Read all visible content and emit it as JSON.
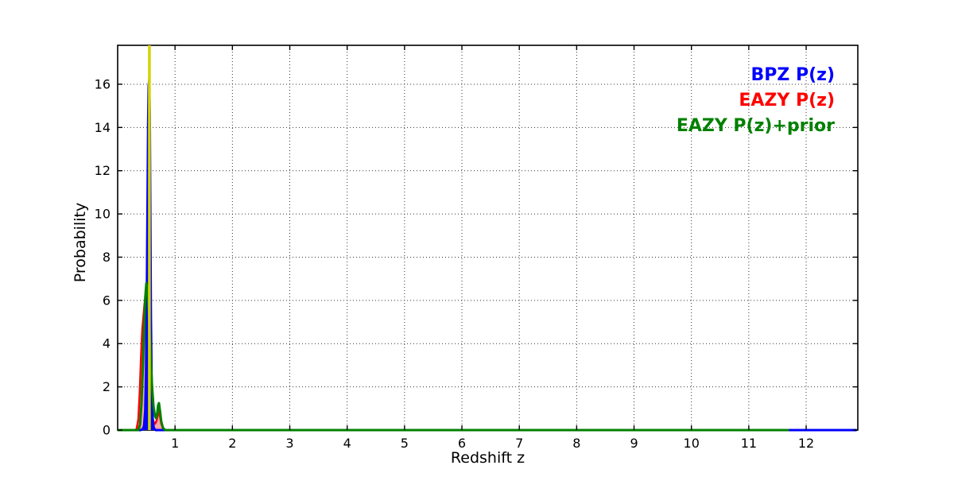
{
  "figure": {
    "background": "#ffffff",
    "frame_color": "#000000",
    "grid_color": "#333333"
  },
  "chart_data": {
    "type": "line",
    "title": "",
    "xlabel": "Redshift z",
    "ylabel": "Probability",
    "xlim": [
      0,
      12.9
    ],
    "ylim": [
      0,
      17.8
    ],
    "xticks": [
      1,
      2,
      3,
      4,
      5,
      6,
      7,
      8,
      9,
      10,
      11,
      12
    ],
    "yticks": [
      0,
      2,
      4,
      6,
      8,
      10,
      12,
      14,
      16
    ],
    "grid": {
      "visible": true,
      "style": "dotted",
      "color": "#333333"
    },
    "legend": {
      "position": "top-right-inside",
      "style": "bold-colored-text-no-markers",
      "entries": [
        {
          "label": "BPZ P(z)",
          "color": "#0000ff"
        },
        {
          "label": "EAZY P(z)",
          "color": "#ff0000"
        },
        {
          "label": "EAZY P(z)+prior",
          "color": "#008000"
        }
      ]
    },
    "series": [
      {
        "name": "EAZY P(z)",
        "color": "#ff0000",
        "fill": "rgba(255,0,0,0.35)",
        "linewidth": 2.5,
        "x": [
          0.0,
          0.3,
          0.33,
          0.36,
          0.385,
          0.41,
          0.43,
          0.45,
          0.47,
          0.49,
          0.51,
          0.53,
          0.55,
          0.57,
          0.6,
          0.63,
          0.655,
          0.68,
          0.7,
          0.72,
          0.74,
          0.76,
          0.79,
          0.83,
          11.7
        ],
        "y": [
          0,
          0,
          0.05,
          0.5,
          1.8,
          3.6,
          4.7,
          5.3,
          5.9,
          5.6,
          4.7,
          3.5,
          2.3,
          1.4,
          0.7,
          0.35,
          0.3,
          0.45,
          0.7,
          0.85,
          0.6,
          0.3,
          0.08,
          0,
          0
        ]
      },
      {
        "name": "BPZ P(z)",
        "color": "#0000ff",
        "fill": "#0000ff",
        "linewidth": 3,
        "x": [
          0.0,
          0.4,
          0.44,
          0.46,
          0.48,
          0.495,
          0.51,
          0.52,
          0.53,
          0.54,
          0.55,
          0.56,
          0.57,
          0.58,
          0.595,
          0.61,
          0.63,
          0.66,
          12.88
        ],
        "y": [
          0,
          0,
          0.05,
          0.2,
          0.9,
          2.8,
          7.0,
          10.5,
          14.0,
          15.9,
          16.2,
          14.6,
          10.0,
          5.2,
          1.6,
          0.5,
          0.1,
          0,
          0
        ]
      },
      {
        "name": "EAZY P(z)+prior",
        "color": "#008000",
        "fill": "none",
        "linewidth": 3,
        "x": [
          0.0,
          0.36,
          0.39,
          0.415,
          0.44,
          0.46,
          0.48,
          0.5,
          0.52,
          0.54,
          0.56,
          0.58,
          0.6,
          0.625,
          0.65,
          0.67,
          0.69,
          0.705,
          0.72,
          0.74,
          0.76,
          0.79,
          0.83,
          11.7
        ],
        "y": [
          0,
          0,
          0.25,
          1.2,
          2.9,
          4.6,
          6.1,
          6.8,
          6.4,
          5.6,
          4.4,
          3.1,
          2.0,
          1.1,
          0.65,
          0.55,
          0.8,
          1.15,
          1.25,
          0.85,
          0.4,
          0.1,
          0,
          0
        ]
      }
    ],
    "vline": {
      "x": 0.553,
      "color": "#d4d400",
      "linewidth": 3.5,
      "span": "full-height"
    },
    "annotations": {
      "peak_values": {
        "bpz_peak": 16.2,
        "eazy_peak": 5.9,
        "eazy_prior_peak": 6.8
      },
      "bpz_baseline_extends_to": 12.88,
      "eazy_baseline_extends_to": 11.7
    }
  }
}
